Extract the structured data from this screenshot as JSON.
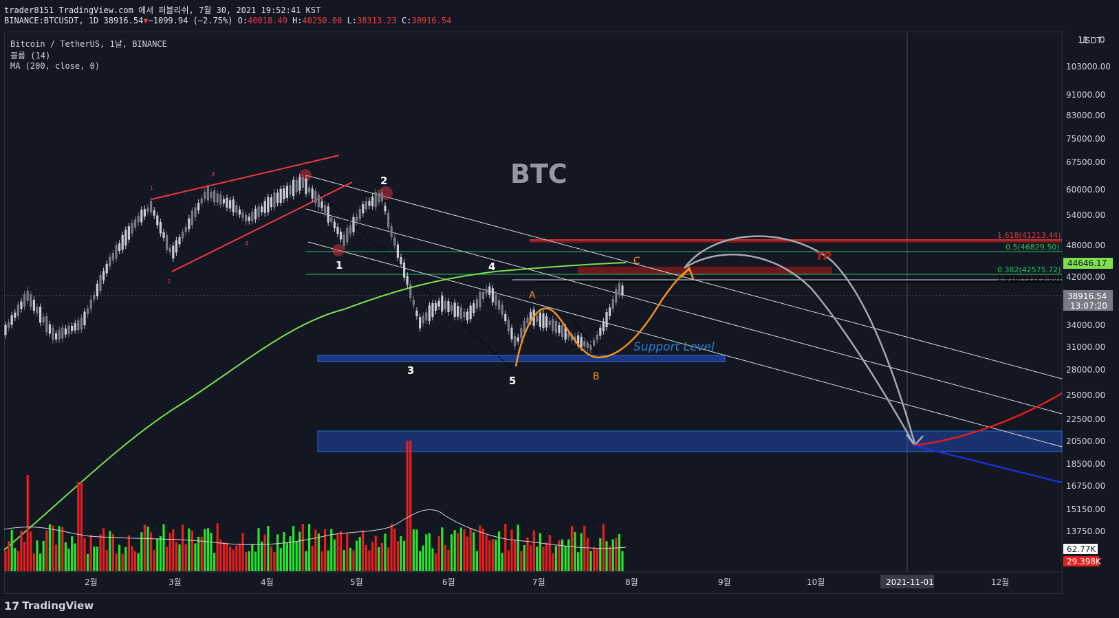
{
  "header": {
    "publish_line": "trader8151 TradingView.com 에서 퍼블리쉬, 7월 30, 2021 19:52:41 KST",
    "symbol_line": "BINANCE:BTCUSDT, 1D 38916.54",
    "change": "−1099.94 (−2.75%)",
    "o_label": "O:",
    "o_value": "40018.49",
    "h_label": "H:",
    "h_value": "40250.00",
    "l_label": "L:",
    "l_value": "38313.23",
    "c_label": "C:",
    "c_value": "38916.54"
  },
  "legend": {
    "series": "Bitcoin / TetherUS, 1날, BINANCE",
    "volume": "볼륨 (14)",
    "ma": "MA (200, close, 0)"
  },
  "annotations": {
    "title": "BTC",
    "support": "Support Level",
    "tp": "TP",
    "wave_labels": [
      "1",
      "2",
      "3",
      "4",
      "5",
      "A",
      "B",
      "C"
    ],
    "fib_labels": [
      "1.618(41213.44)",
      "0.5(46829.50)",
      "0.382(42575.72)",
      "1.618(41125.80)"
    ]
  },
  "price_axis": {
    "currency": "USDT",
    "ticks": [
      "103000.00",
      "91000.00",
      "83000.00",
      "75000.00",
      "67500.00",
      "60000.00",
      "54000.00",
      "48000.00",
      "42000.00",
      "34000.00",
      "31000.00",
      "28000.00",
      "25000.00",
      "22500.00",
      "20500.00",
      "18500.00",
      "16750.00",
      "15150.00",
      "13750.00"
    ],
    "top_tick": "11",
    "ma_value": "44646.17",
    "last_price": "38916.54",
    "countdown": "13:07:20",
    "vol_ma": "62.77K",
    "volume": "29.398K"
  },
  "time_axis": {
    "ticks": [
      "2월",
      "3월",
      "4월",
      "5월",
      "6월",
      "7월",
      "8월",
      "9월",
      "10월",
      "11월",
      "12월"
    ],
    "crosshair_date": "2021-11-01"
  },
  "branding": {
    "logo_text": "TradingView"
  },
  "colors": {
    "background": "#131722",
    "up": "#c9ccd6",
    "down": "#787b86",
    "ma": "#7ee04d",
    "vol_up": "#26e62c",
    "vol_down": "#e61f1f",
    "channel": "#d9d9d9",
    "zone": "#2962ff",
    "wave_orange": "#f7931a",
    "wedge_red": "#f23645"
  }
}
